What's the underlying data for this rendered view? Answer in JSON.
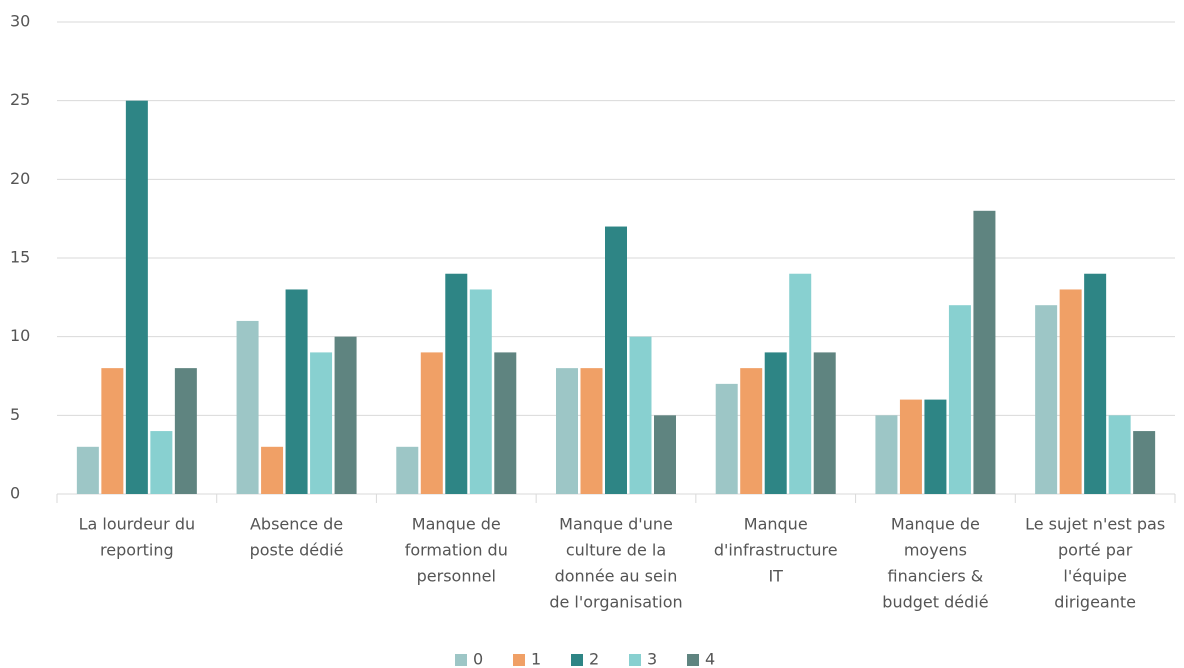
{
  "chart_data": {
    "type": "bar",
    "categories": [
      [
        "La lourdeur du",
        "reporting"
      ],
      [
        "Absence de",
        "poste dédié"
      ],
      [
        "Manque de",
        "formation du",
        "personnel"
      ],
      [
        "Manque d'une",
        "culture de la",
        "donnée au sein",
        "de l'organisation"
      ],
      [
        "Manque",
        "d'infrastructure",
        "IT"
      ],
      [
        "Manque de",
        "moyens",
        "financiers &",
        "budget dédié"
      ],
      [
        "Le sujet n'est pas",
        "porté par",
        "l'équipe",
        "dirigeante"
      ]
    ],
    "series": [
      {
        "name": "0",
        "color": "#9dc6c6",
        "values": [
          3,
          11,
          3,
          8,
          7,
          5,
          12
        ]
      },
      {
        "name": "1",
        "color": "#f0a066",
        "values": [
          8,
          3,
          9,
          8,
          8,
          6,
          13
        ]
      },
      {
        "name": "2",
        "color": "#2e8585",
        "values": [
          25,
          13,
          14,
          17,
          9,
          6,
          14
        ]
      },
      {
        "name": "3",
        "color": "#88d0d0",
        "values": [
          4,
          9,
          13,
          10,
          14,
          12,
          5
        ]
      },
      {
        "name": "4",
        "color": "#5f8480",
        "values": [
          8,
          10,
          9,
          5,
          9,
          18,
          4
        ]
      }
    ],
    "ylim": [
      0,
      30
    ],
    "yticks": [
      0,
      5,
      10,
      15,
      20,
      25,
      30
    ],
    "grid": true,
    "legend": "bottom"
  }
}
